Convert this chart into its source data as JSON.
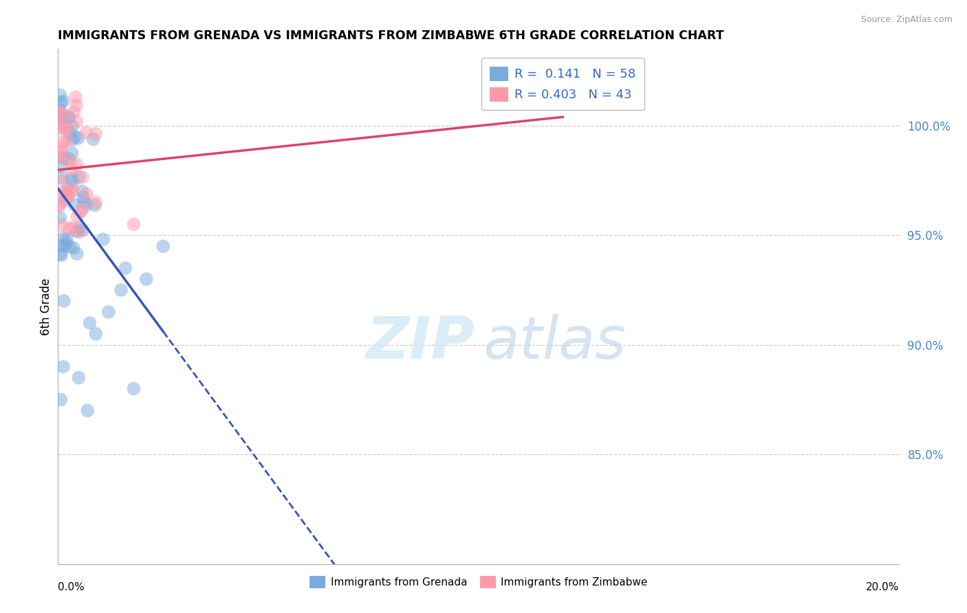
{
  "title": "IMMIGRANTS FROM GRENADA VS IMMIGRANTS FROM ZIMBABWE 6TH GRADE CORRELATION CHART",
  "source": "Source: ZipAtlas.com",
  "ylabel": "6th Grade",
  "right_yticks": [
    85.0,
    90.0,
    95.0,
    100.0
  ],
  "xmin": 0.0,
  "xmax": 20.0,
  "ymin": 80.0,
  "ymax": 103.5,
  "legend_R_blue": "0.141",
  "legend_N_blue": "58",
  "legend_R_pink": "0.403",
  "legend_N_pink": "43",
  "legend_label_blue": "Immigrants from Grenada",
  "legend_label_pink": "Immigrants from Zimbabwe",
  "color_blue": "#7AABDD",
  "color_pink": "#FF99AA",
  "color_line_blue": "#3355BB",
  "color_line_pink": "#DD4466",
  "watermark_zip": "ZIP",
  "watermark_atlas": "atlas"
}
